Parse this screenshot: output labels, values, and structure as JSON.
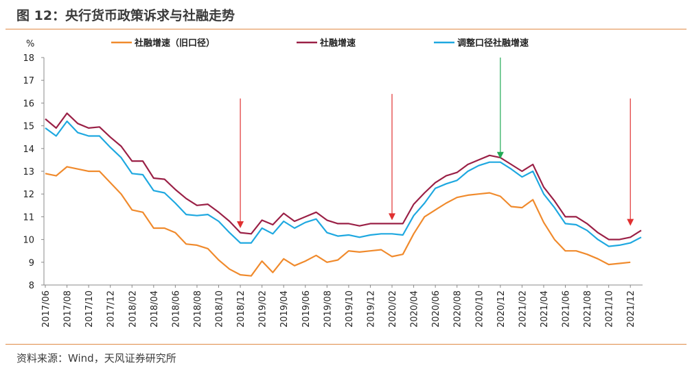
{
  "figure": {
    "title": "图 12：央行货币政策诉求与社融走势",
    "source": "资料来源：Wind，天风证券研究所"
  },
  "colors": {
    "old_caliber": "#f08a2c",
    "tsf": "#9a2046",
    "adjusted": "#1ea8e0",
    "arrow_red": "#e03030",
    "arrow_green": "#22aa55",
    "rule": "#e08a45"
  },
  "chart_data": {
    "type": "line",
    "ylabel": "%",
    "ylim": [
      8,
      18
    ],
    "yticks": [
      8,
      9,
      10,
      11,
      12,
      13,
      14,
      15,
      16,
      17,
      18
    ],
    "xlim": [
      "2017/06",
      "2022/01"
    ],
    "xticks": [
      "2017/06",
      "2017/08",
      "2017/10",
      "2017/12",
      "2018/02",
      "2018/04",
      "2018/06",
      "2018/08",
      "2018/10",
      "2018/12",
      "2019/02",
      "2019/04",
      "2019/06",
      "2019/08",
      "2019/10",
      "2019/12",
      "2020/02",
      "2020/04",
      "2020/06",
      "2020/08",
      "2020/10",
      "2020/12",
      "2021/02",
      "2021/04",
      "2021/06",
      "2021/08",
      "2021/10",
      "2021/12"
    ],
    "legend_position": "top",
    "grid": false,
    "series": [
      {
        "name": "社融增速（旧口径）",
        "color_key": "old_caliber",
        "x": [
          "2017/06",
          "2017/07",
          "2017/08",
          "2017/09",
          "2017/10",
          "2017/11",
          "2017/12",
          "2018/01",
          "2018/02",
          "2018/03",
          "2018/04",
          "2018/05",
          "2018/06",
          "2018/07",
          "2018/08",
          "2018/09",
          "2018/10",
          "2018/11",
          "2018/12",
          "2019/01",
          "2019/02",
          "2019/03",
          "2019/04",
          "2019/05",
          "2019/06",
          "2019/07",
          "2019/08",
          "2019/09",
          "2019/10",
          "2019/11",
          "2019/12",
          "2020/01",
          "2020/02",
          "2020/03",
          "2020/04",
          "2020/05",
          "2020/06",
          "2020/07",
          "2020/08",
          "2020/09",
          "2020/10",
          "2020/11",
          "2020/12",
          "2021/01",
          "2021/02",
          "2021/03",
          "2021/04",
          "2021/05",
          "2021/06",
          "2021/07",
          "2021/08",
          "2021/09",
          "2021/10",
          "2021/11",
          "2021/12"
        ],
        "values": [
          12.9,
          12.8,
          13.2,
          13.1,
          13.0,
          13.0,
          12.5,
          12.0,
          11.3,
          11.2,
          10.5,
          10.5,
          10.3,
          9.8,
          9.75,
          9.6,
          9.1,
          8.7,
          8.45,
          8.4,
          9.05,
          8.55,
          9.15,
          8.85,
          9.05,
          9.3,
          9.0,
          9.1,
          9.5,
          9.45,
          9.5,
          9.55,
          9.25,
          9.35,
          10.25,
          11.0,
          11.3,
          11.6,
          11.85,
          11.95,
          12.0,
          12.05,
          11.9,
          11.45,
          11.4,
          11.75,
          10.75,
          10.0,
          9.5,
          9.5,
          9.35,
          9.15,
          8.9,
          8.95,
          9.0
        ]
      },
      {
        "name": "社融增速",
        "color_key": "tsf",
        "x": [
          "2017/06",
          "2017/07",
          "2017/08",
          "2017/09",
          "2017/10",
          "2017/11",
          "2017/12",
          "2018/01",
          "2018/02",
          "2018/03",
          "2018/04",
          "2018/05",
          "2018/06",
          "2018/07",
          "2018/08",
          "2018/09",
          "2018/10",
          "2018/11",
          "2018/12",
          "2019/01",
          "2019/02",
          "2019/03",
          "2019/04",
          "2019/05",
          "2019/06",
          "2019/07",
          "2019/08",
          "2019/09",
          "2019/10",
          "2019/11",
          "2019/12",
          "2020/01",
          "2020/02",
          "2020/03",
          "2020/04",
          "2020/05",
          "2020/06",
          "2020/07",
          "2020/08",
          "2020/09",
          "2020/10",
          "2020/11",
          "2020/12",
          "2021/01",
          "2021/02",
          "2021/03",
          "2021/04",
          "2021/05",
          "2021/06",
          "2021/07",
          "2021/08",
          "2021/09",
          "2021/10",
          "2021/11",
          "2021/12",
          "2022/01"
        ],
        "values": [
          15.3,
          14.9,
          15.55,
          15.1,
          14.9,
          14.95,
          14.5,
          14.1,
          13.45,
          13.45,
          12.7,
          12.65,
          12.2,
          11.8,
          11.5,
          11.55,
          11.2,
          10.8,
          10.3,
          10.25,
          10.85,
          10.65,
          11.15,
          10.8,
          11.0,
          11.2,
          10.85,
          10.7,
          10.7,
          10.6,
          10.7,
          10.7,
          10.7,
          10.7,
          11.55,
          12.05,
          12.5,
          12.8,
          12.95,
          13.3,
          13.5,
          13.7,
          13.6,
          13.3,
          13.0,
          13.3,
          12.3,
          11.7,
          11.0,
          11.0,
          10.7,
          10.3,
          10.0,
          10.0,
          10.1,
          10.4
        ]
      },
      {
        "name": "调整口径社融增速",
        "color_key": "adjusted",
        "x": [
          "2017/06",
          "2017/07",
          "2017/08",
          "2017/09",
          "2017/10",
          "2017/11",
          "2017/12",
          "2018/01",
          "2018/02",
          "2018/03",
          "2018/04",
          "2018/05",
          "2018/06",
          "2018/07",
          "2018/08",
          "2018/09",
          "2018/10",
          "2018/11",
          "2018/12",
          "2019/01",
          "2019/02",
          "2019/03",
          "2019/04",
          "2019/05",
          "2019/06",
          "2019/07",
          "2019/08",
          "2019/09",
          "2019/10",
          "2019/11",
          "2019/12",
          "2020/01",
          "2020/02",
          "2020/03",
          "2020/04",
          "2020/05",
          "2020/06",
          "2020/07",
          "2020/08",
          "2020/09",
          "2020/10",
          "2020/11",
          "2020/12",
          "2021/01",
          "2021/02",
          "2021/03",
          "2021/04",
          "2021/05",
          "2021/06",
          "2021/07",
          "2021/08",
          "2021/09",
          "2021/10",
          "2021/11",
          "2021/12",
          "2022/01"
        ],
        "values": [
          14.9,
          14.55,
          15.2,
          14.7,
          14.55,
          14.55,
          14.05,
          13.6,
          12.9,
          12.85,
          12.15,
          12.05,
          11.6,
          11.1,
          11.05,
          11.1,
          10.8,
          10.3,
          9.85,
          9.85,
          10.5,
          10.25,
          10.8,
          10.5,
          10.75,
          10.9,
          10.3,
          10.15,
          10.2,
          10.1,
          10.2,
          10.25,
          10.25,
          10.2,
          11.05,
          11.6,
          12.25,
          12.45,
          12.6,
          13.0,
          13.25,
          13.4,
          13.4,
          13.1,
          12.75,
          13.0,
          12.0,
          11.4,
          10.7,
          10.65,
          10.4,
          10.0,
          9.7,
          9.75,
          9.85,
          10.1
        ]
      }
    ],
    "annotations": [
      {
        "type": "arrow",
        "direction": "down",
        "x": "2018/12",
        "y_from": 16.2,
        "y_to": 10.5,
        "color_key": "arrow_red"
      },
      {
        "type": "arrow",
        "direction": "down",
        "x": "2020/02",
        "y_from": 16.4,
        "y_to": 10.85,
        "color_key": "arrow_red"
      },
      {
        "type": "arrow",
        "direction": "down",
        "x": "2020/12",
        "y_from": 18.0,
        "y_to": 13.55,
        "color_key": "arrow_green"
      },
      {
        "type": "arrow",
        "direction": "down",
        "x": "2021/12",
        "y_from": 16.2,
        "y_to": 10.6,
        "color_key": "arrow_red"
      }
    ]
  }
}
